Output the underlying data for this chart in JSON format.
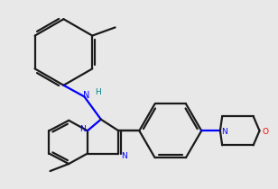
{
  "bg": "#e8e8e8",
  "bond_color": "#1a1a1a",
  "n_color": "#0000ff",
  "o_color": "#ff0000",
  "nh_color": "#008080",
  "lw": 1.6,
  "dbo": 0.025
}
